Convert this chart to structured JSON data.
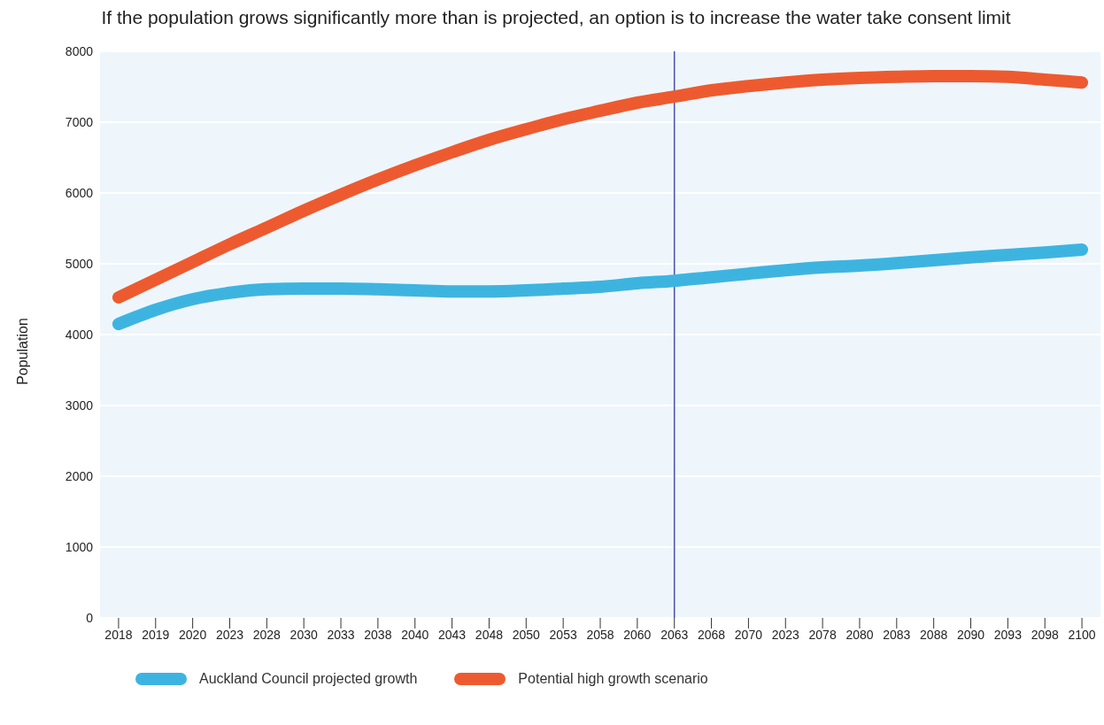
{
  "chart_data": {
    "type": "line",
    "title": "If the population grows significantly more than is projected, an option is to increase the water take consent limit",
    "ylabel": "Population",
    "categories": [
      "2018",
      "2019",
      "2020",
      "2023",
      "2028",
      "2030",
      "2033",
      "2038",
      "2040",
      "2043",
      "2048",
      "2050",
      "2053",
      "2058",
      "2060",
      "2063",
      "2068",
      "2070",
      "2023",
      "2078",
      "2080",
      "2083",
      "2088",
      "2090",
      "2093",
      "2098",
      "2100"
    ],
    "series": [
      {
        "name": "Auckland Council projected growth",
        "color": "#3db4e0",
        "values": [
          4150,
          4350,
          4500,
          4590,
          4640,
          4650,
          4650,
          4640,
          4625,
          4610,
          4610,
          4625,
          4650,
          4675,
          4725,
          4760,
          4810,
          4860,
          4910,
          4950,
          4975,
          5010,
          5050,
          5090,
          5125,
          5160,
          5200
        ]
      },
      {
        "name": "Potential high growth scenario",
        "color": "#ee5a2f",
        "values": [
          4525,
          4775,
          5025,
          5275,
          5510,
          5750,
          5975,
          6190,
          6390,
          6575,
          6750,
          6900,
          7040,
          7160,
          7275,
          7360,
          7450,
          7510,
          7560,
          7600,
          7625,
          7640,
          7650,
          7650,
          7640,
          7600,
          7560
        ]
      }
    ],
    "ylim": [
      0,
      8000
    ],
    "yticks": [
      0,
      1000,
      2000,
      3000,
      4000,
      5000,
      6000,
      7000,
      8000
    ],
    "grid": "y",
    "legend": "bottom left",
    "ref_lines": [
      {
        "axis": "x",
        "value": "2063",
        "color": "#4a4fb0"
      }
    ]
  }
}
